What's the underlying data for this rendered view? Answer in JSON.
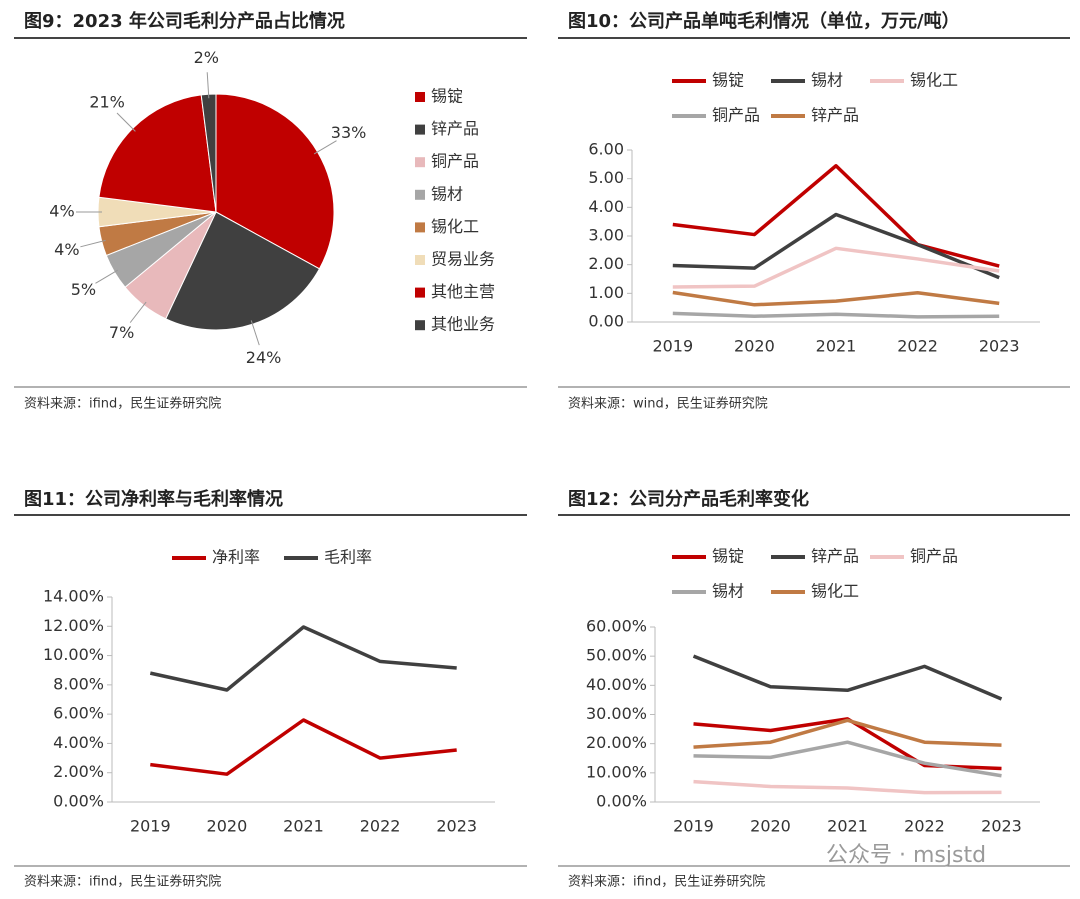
{
  "chart_data": [
    {
      "type": "pie",
      "title": "图9：2023 年公司毛利分产品占比情况",
      "source": "资料来源：ifind，民生证券研究院",
      "categories": [
        "锡锭",
        "锌产品",
        "铜产品",
        "锡材",
        "锡化工",
        "贸易业务",
        "其他主营",
        "其他业务"
      ],
      "values": [
        33,
        24,
        7,
        5,
        4,
        4,
        21,
        2
      ],
      "value_labels": [
        "33%",
        "24%",
        "7%",
        "5%",
        "4%",
        "4%",
        "21%",
        "2%"
      ],
      "colors": [
        "#c00000",
        "#404040",
        "#e8b9bb",
        "#a6a6a6",
        "#c07a44",
        "#f0ddb8",
        "#c00000",
        "#404040"
      ]
    },
    {
      "type": "line",
      "title": "图10：公司产品单吨毛利情况（单位，万元/吨）",
      "source": "资料来源：wind，民生证券研究院",
      "categories": [
        "2019",
        "2020",
        "2021",
        "2022",
        "2023"
      ],
      "series": [
        {
          "name": "锡锭",
          "color": "#c00000",
          "values": [
            3.4,
            3.05,
            5.45,
            2.7,
            1.95
          ]
        },
        {
          "name": "锡材",
          "color": "#404040",
          "values": [
            1.97,
            1.88,
            3.75,
            2.7,
            1.55
          ]
        },
        {
          "name": "锡化工",
          "color": "#f0c4c4",
          "values": [
            1.22,
            1.25,
            2.57,
            2.2,
            1.78
          ]
        },
        {
          "name": "铜产品",
          "color": "#a6a6a6",
          "values": [
            0.3,
            0.2,
            0.27,
            0.18,
            0.2
          ]
        },
        {
          "name": "锌产品",
          "color": "#c07a44",
          "values": [
            1.03,
            0.6,
            0.73,
            1.02,
            0.65
          ]
        }
      ],
      "ylim": [
        0,
        6
      ],
      "yticks": [
        {
          "value": 0,
          "label": "0.00"
        },
        {
          "value": 1,
          "label": "1.00"
        },
        {
          "value": 2,
          "label": "2.00"
        },
        {
          "value": 3,
          "label": "3.00"
        },
        {
          "value": 4,
          "label": "4.00"
        },
        {
          "value": 5,
          "label": "5.00"
        },
        {
          "value": 6,
          "label": "6.00"
        }
      ],
      "grid": false
    },
    {
      "type": "line",
      "title": "图11：公司净利率与毛利率情况",
      "source": "资料来源：ifind，民生证券研究院",
      "categories": [
        "2019",
        "2020",
        "2021",
        "2022",
        "2023"
      ],
      "series": [
        {
          "name": "净利率",
          "color": "#c00000",
          "values": [
            2.55,
            1.9,
            5.6,
            3.0,
            3.55
          ]
        },
        {
          "name": "毛利率",
          "color": "#404040",
          "values": [
            8.8,
            7.65,
            11.95,
            9.6,
            9.15
          ]
        }
      ],
      "ylim": [
        0,
        14
      ],
      "yticks": [
        {
          "value": 0,
          "label": "0.00%"
        },
        {
          "value": 2,
          "label": "2.00%"
        },
        {
          "value": 4,
          "label": "4.00%"
        },
        {
          "value": 6,
          "label": "6.00%"
        },
        {
          "value": 8,
          "label": "8.00%"
        },
        {
          "value": 10,
          "label": "10.00%"
        },
        {
          "value": 12,
          "label": "12.00%"
        },
        {
          "value": 14,
          "label": "14.00%"
        }
      ],
      "grid": false
    },
    {
      "type": "line",
      "title": "图12：公司分产品毛利率变化",
      "source": "资料来源：ifind，民生证券研究院",
      "categories": [
        "2019",
        "2020",
        "2021",
        "2022",
        "2023"
      ],
      "series": [
        {
          "name": "锡锭",
          "color": "#c00000",
          "values": [
            26.8,
            24.5,
            28.5,
            12.5,
            11.5
          ]
        },
        {
          "name": "锌产品",
          "color": "#404040",
          "values": [
            50.0,
            39.5,
            38.3,
            46.5,
            35.3
          ]
        },
        {
          "name": "铜产品",
          "color": "#f0c4c4",
          "values": [
            7.0,
            5.3,
            4.8,
            3.2,
            3.3
          ]
        },
        {
          "name": "锡材",
          "color": "#a6a6a6",
          "values": [
            15.8,
            15.3,
            20.5,
            13.3,
            9.0
          ]
        },
        {
          "name": "锡化工",
          "color": "#c07a44",
          "values": [
            18.8,
            20.5,
            28.0,
            20.5,
            19.5
          ]
        }
      ],
      "ylim": [
        0,
        60
      ],
      "yticks": [
        {
          "value": 0,
          "label": "0.00%"
        },
        {
          "value": 10,
          "label": "10.00%"
        },
        {
          "value": 20,
          "label": "20.00%"
        },
        {
          "value": 30,
          "label": "30.00%"
        },
        {
          "value": 40,
          "label": "40.00%"
        },
        {
          "value": 50,
          "label": "50.00%"
        },
        {
          "value": 60,
          "label": "60.00%"
        }
      ],
      "grid": false
    }
  ],
  "watermark": "公众号 · msjstd"
}
